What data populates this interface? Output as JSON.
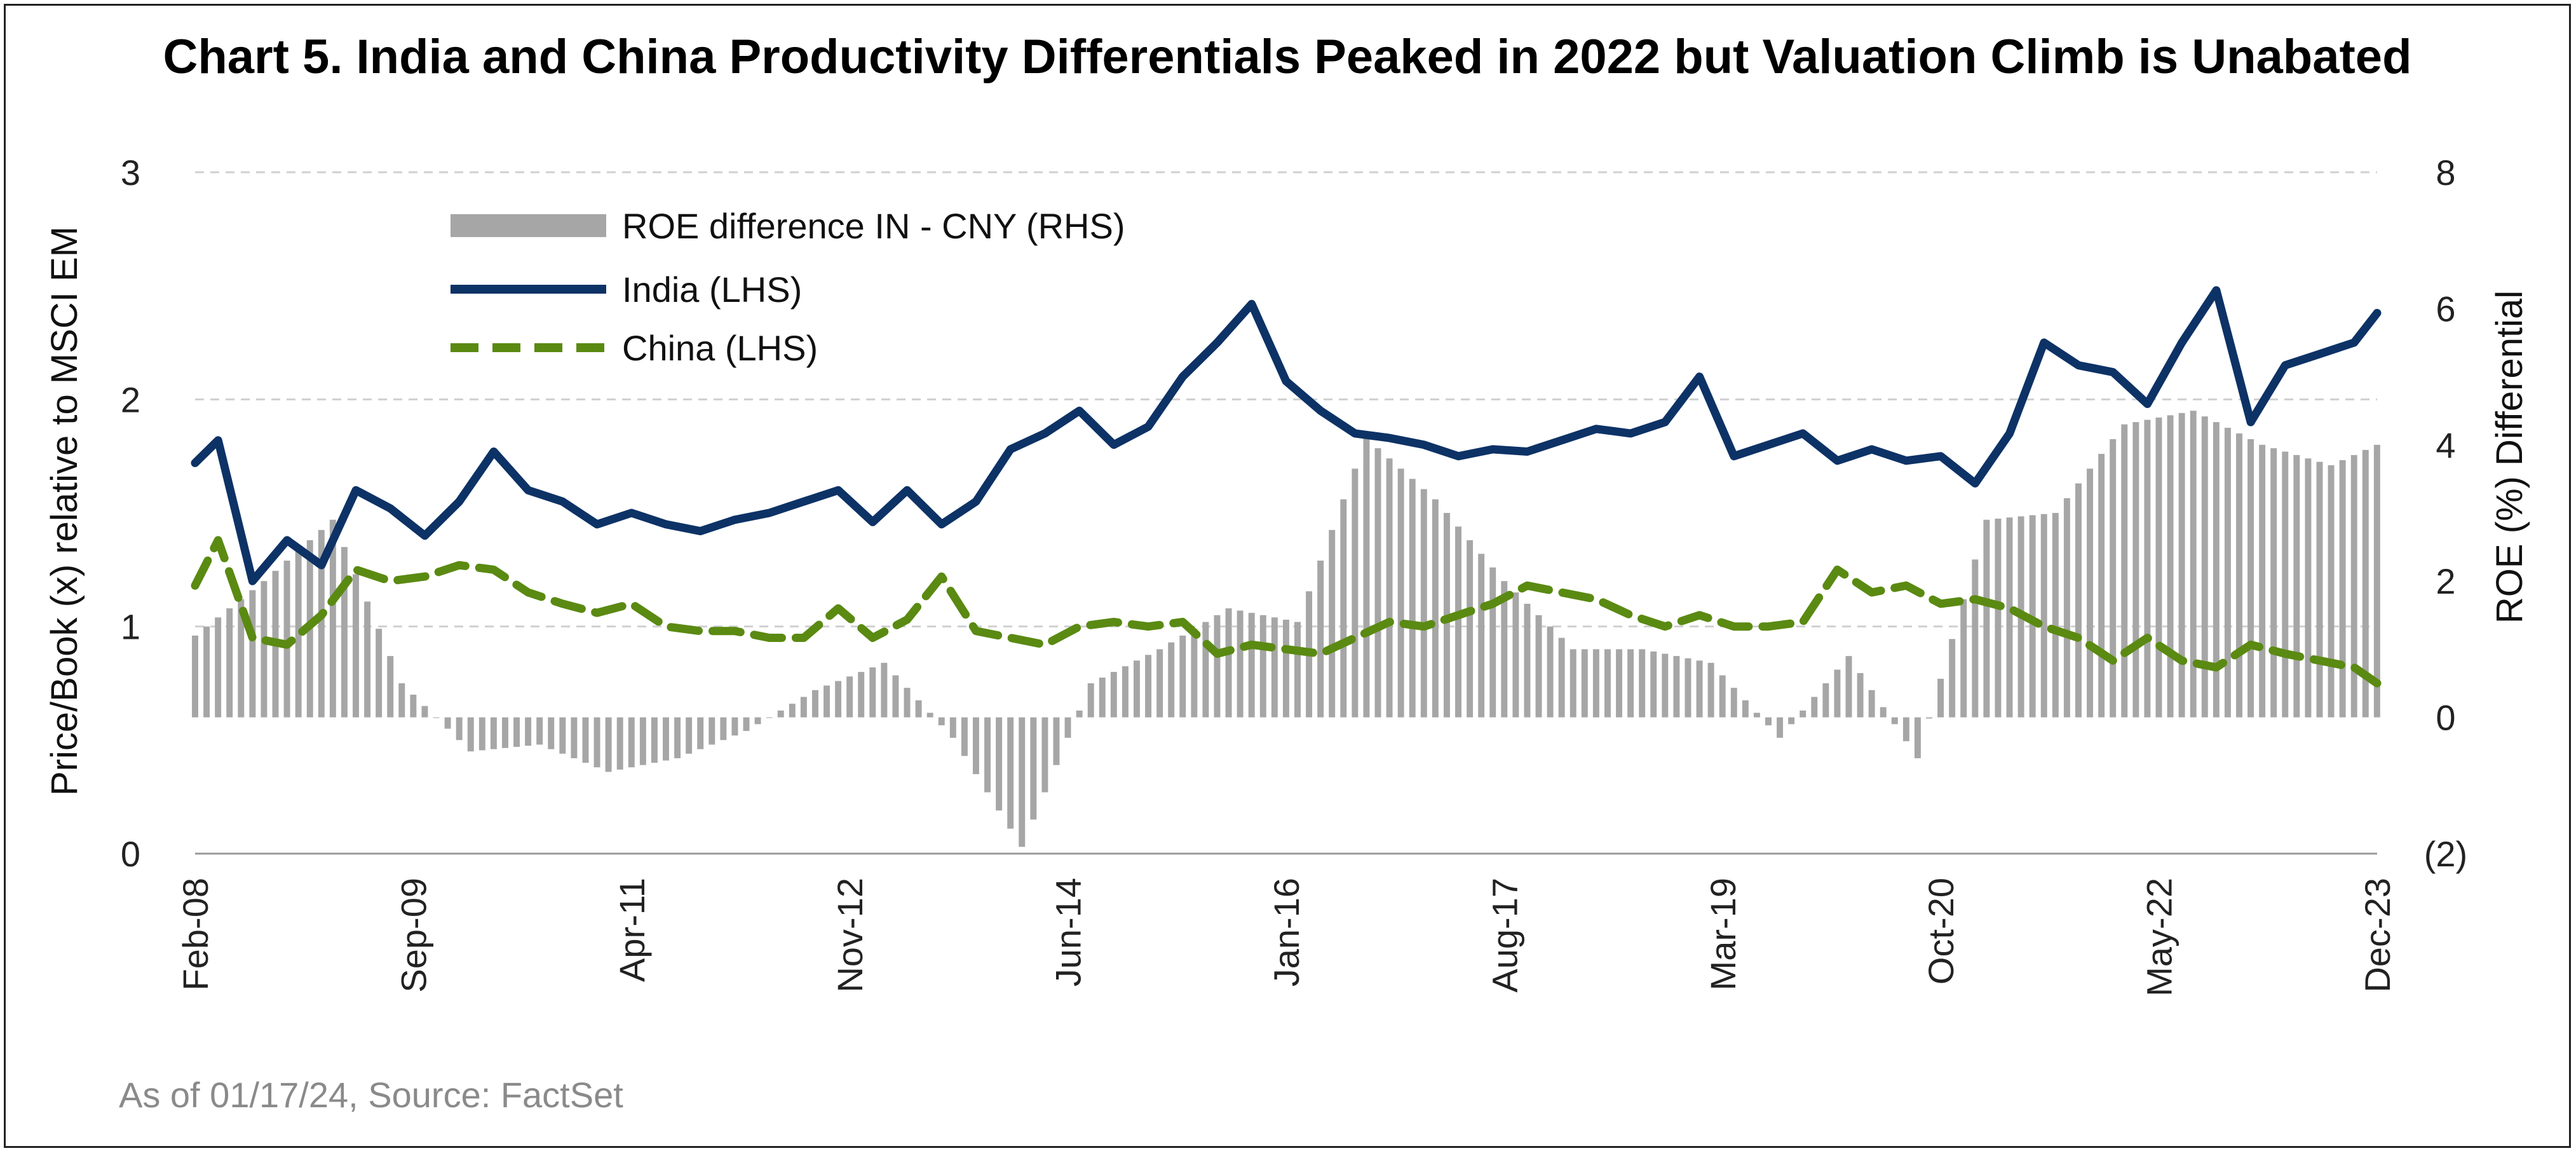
{
  "chart_data": {
    "type": "bar+line",
    "title": "Chart 5. India and China Productivity Differentials Peaked in 2022 but Valuation Climb is Unabated",
    "ylabel_left": "Price/Book (x) relative to MSCI EM",
    "ylabel_right": "ROE (%)  Differential",
    "ylim_left": [
      0,
      3
    ],
    "ylim_right": [
      -2,
      8
    ],
    "yticks_left": [
      "0",
      "1",
      "2",
      "3"
    ],
    "yticks_right": [
      "(2)",
      "0",
      "2",
      "4",
      "6",
      "8"
    ],
    "x_range_years": [
      2008.083,
      2023.917
    ],
    "x_ticks": [
      "Feb-08",
      "Sep-09",
      "Apr-11",
      "Nov-12",
      "Jun-14",
      "Jan-16",
      "Aug-17",
      "Mar-19",
      "Oct-20",
      "May-22",
      "Dec-23"
    ],
    "grid": "horizontal-dashed",
    "legend_position": "top-left",
    "colors": {
      "roe_bars": "#a6a6a6",
      "india": "#0d3266",
      "china": "#5a8a12",
      "grid": "#d0d0d0"
    },
    "series": [
      {
        "name": "ROE difference IN - CNY (RHS)",
        "kind": "bar",
        "axis": "right",
        "x": [
          2008.083,
          2008.583,
          2009.083,
          2009.583,
          2010.083,
          2010.583,
          2011.083,
          2011.583,
          2012.083,
          2012.583,
          2013.083,
          2013.583,
          2014.083,
          2014.583,
          2015.083,
          2015.583,
          2016.083,
          2016.583,
          2017.083,
          2017.583,
          2018.083,
          2018.583,
          2019.083,
          2019.583,
          2020.083,
          2020.583,
          2021.083,
          2021.583,
          2022.083,
          2022.583,
          2023.083,
          2023.583,
          2023.917
        ],
        "values": [
          1.2,
          2.0,
          2.9,
          0.5,
          -0.5,
          -0.4,
          -0.8,
          -0.6,
          -0.2,
          0.4,
          0.8,
          -0.3,
          -1.9,
          0.5,
          1.0,
          1.6,
          1.4,
          4.1,
          3.2,
          2.0,
          1.0,
          1.0,
          0.8,
          -0.3,
          0.9,
          -0.6,
          2.9,
          3.0,
          4.3,
          4.5,
          4.0,
          3.7,
          4.0
        ]
      },
      {
        "name": "India (LHS)",
        "kind": "line",
        "axis": "left",
        "x": [
          2008.083,
          2008.25,
          2008.5,
          2008.75,
          2009.0,
          2009.25,
          2009.5,
          2009.75,
          2010.0,
          2010.25,
          2010.5,
          2010.75,
          2011.0,
          2011.25,
          2011.5,
          2011.75,
          2012.0,
          2012.25,
          2012.5,
          2012.75,
          2013.0,
          2013.25,
          2013.5,
          2013.75,
          2014.0,
          2014.25,
          2014.5,
          2014.75,
          2015.0,
          2015.25,
          2015.5,
          2015.75,
          2016.0,
          2016.25,
          2016.5,
          2016.75,
          2017.0,
          2017.25,
          2017.5,
          2017.75,
          2018.0,
          2018.25,
          2018.5,
          2018.75,
          2019.0,
          2019.25,
          2019.5,
          2019.75,
          2020.0,
          2020.25,
          2020.5,
          2020.75,
          2021.0,
          2021.25,
          2021.5,
          2021.75,
          2022.0,
          2022.25,
          2022.5,
          2022.75,
          2023.0,
          2023.25,
          2023.5,
          2023.75,
          2023.917
        ],
        "values": [
          1.72,
          1.82,
          1.2,
          1.38,
          1.27,
          1.6,
          1.52,
          1.4,
          1.55,
          1.77,
          1.6,
          1.55,
          1.45,
          1.5,
          1.45,
          1.42,
          1.47,
          1.5,
          1.55,
          1.6,
          1.46,
          1.6,
          1.45,
          1.55,
          1.78,
          1.85,
          1.95,
          1.8,
          1.88,
          2.1,
          2.25,
          2.42,
          2.08,
          1.95,
          1.85,
          1.83,
          1.8,
          1.75,
          1.78,
          1.77,
          1.82,
          1.87,
          1.85,
          1.9,
          2.1,
          1.75,
          1.8,
          1.85,
          1.73,
          1.78,
          1.73,
          1.75,
          1.63,
          1.85,
          2.25,
          2.15,
          2.12,
          1.98,
          2.25,
          2.48,
          1.9,
          2.15,
          2.2,
          2.25,
          2.38
        ]
      },
      {
        "name": "China (LHS)",
        "kind": "line",
        "axis": "left",
        "x": [
          2008.083,
          2008.25,
          2008.5,
          2008.75,
          2009.0,
          2009.25,
          2009.5,
          2009.75,
          2010.0,
          2010.25,
          2010.5,
          2010.75,
          2011.0,
          2011.25,
          2011.5,
          2011.75,
          2012.0,
          2012.25,
          2012.5,
          2012.75,
          2013.0,
          2013.25,
          2013.5,
          2013.75,
          2014.0,
          2014.25,
          2014.5,
          2014.75,
          2015.0,
          2015.25,
          2015.5,
          2015.75,
          2016.0,
          2016.25,
          2016.5,
          2016.75,
          2017.0,
          2017.25,
          2017.5,
          2017.75,
          2018.0,
          2018.25,
          2018.5,
          2018.75,
          2019.0,
          2019.25,
          2019.5,
          2019.75,
          2020.0,
          2020.25,
          2020.5,
          2020.75,
          2021.0,
          2021.25,
          2021.5,
          2021.75,
          2022.0,
          2022.25,
          2022.5,
          2022.75,
          2023.0,
          2023.25,
          2023.5,
          2023.75,
          2023.917
        ],
        "values": [
          1.18,
          1.38,
          0.95,
          0.92,
          1.05,
          1.25,
          1.2,
          1.22,
          1.27,
          1.25,
          1.15,
          1.1,
          1.06,
          1.1,
          1.0,
          0.98,
          0.98,
          0.95,
          0.95,
          1.08,
          0.95,
          1.03,
          1.22,
          0.98,
          0.95,
          0.92,
          1.0,
          1.02,
          1.0,
          1.02,
          0.88,
          0.92,
          0.9,
          0.88,
          0.95,
          1.02,
          1.0,
          1.05,
          1.1,
          1.18,
          1.15,
          1.12,
          1.05,
          1.0,
          1.05,
          1.0,
          1.0,
          1.02,
          1.25,
          1.15,
          1.18,
          1.1,
          1.12,
          1.08,
          1.0,
          0.95,
          0.85,
          0.95,
          0.85,
          0.82,
          0.92,
          0.88,
          0.85,
          0.82,
          0.75
        ]
      }
    ]
  },
  "source_note": "As of 01/17/24, Source:  FactSet"
}
